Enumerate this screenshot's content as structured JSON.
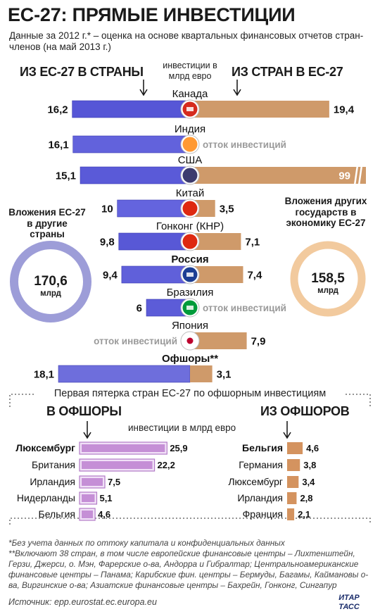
{
  "title": "ЕС-27: ПРЯМЫЕ ИНВЕСТИЦИИ",
  "subtitle": "Данные за 2012 г.* – оценка на основе квартальных финансовых отчетов стран-членов (на май 2013 г.)",
  "header_left": "ИЗ ЕС-27 В СТРАНЫ",
  "header_right": "ИЗ СТРАН В ЕС-27",
  "unit_top": "инвестиции в млрд евро",
  "outflow_label": "отток инвестиций",
  "left_ring": {
    "title": "Вложения ЕС-27 в другие страны",
    "value": "170,6",
    "unit": "млрд",
    "color": "#9d9dd8"
  },
  "right_ring": {
    "title": "Вложения других государств в экономику ЕС-27",
    "value": "158,5",
    "unit": "млрд",
    "color": "#f2ca9e"
  },
  "offshore_title": "Первая пятерка стран ЕС-27 по офшорным инвестициям",
  "header_offshore_left": "В ОФШОРЫ",
  "header_offshore_right": "ИЗ ОФШОРОВ",
  "unit_mid": "инвестиции в млрд евро",
  "colors": {
    "outward": "#5050d0",
    "inward": "#cf9a6a",
    "to_offshore": "#c58fd6",
    "from_offshore": "#d4935f"
  },
  "chart_data": [
    {
      "type": "bar",
      "categories": [
        "Канада",
        "Индия",
        "США",
        "Китай",
        "Гонконг (КНР)",
        "Россия",
        "Бразилия",
        "Япония",
        "Офшоры**"
      ],
      "bold_categories": [
        "Россия",
        "Офшоры**"
      ],
      "series": [
        {
          "name": "ИЗ ЕС-27 В СТРАНЫ",
          "values": [
            16.2,
            16.1,
            15.1,
            10,
            9.8,
            9.4,
            6,
            null,
            18.1
          ],
          "labels": [
            "16,2",
            "16,1",
            "15,1",
            "10",
            "9,8",
            "9,4",
            "6",
            "",
            "18,1"
          ]
        },
        {
          "name": "ИЗ СТРАН В ЕС-27",
          "values": [
            19.4,
            null,
            99,
            3.5,
            7.1,
            7.4,
            null,
            7.9,
            3.1
          ],
          "labels": [
            "19,4",
            "",
            "99",
            "3,5",
            "7,1",
            "7,4",
            "",
            "7,9",
            "3,1"
          ]
        }
      ],
      "outflow": [
        false,
        true,
        false,
        false,
        false,
        false,
        true,
        true,
        false
      ],
      "ylabel": "инвестиции в млрд евро"
    },
    {
      "type": "bar",
      "title": "В ОФШОРЫ",
      "categories": [
        "Люксембург",
        "Британия",
        "Ирландия",
        "Нидерланды",
        "Бельгия"
      ],
      "values": [
        25.9,
        22.2,
        7.5,
        5.1,
        4.6
      ],
      "labels": [
        "25,9",
        "22,2",
        "7,5",
        "5,1",
        "4,6"
      ]
    },
    {
      "type": "bar",
      "title": "ИЗ ОФШОРОВ",
      "categories": [
        "Бельгия",
        "Германия",
        "Люксембург",
        "Ирландия",
        "Франция"
      ],
      "values": [
        4.6,
        3.8,
        3.4,
        2.8,
        2.1
      ],
      "labels": [
        "4,6",
        "3,8",
        "3,4",
        "2,8",
        "2,1"
      ]
    }
  ],
  "footnotes": [
    "*Без учета данных по оттоку капитала и конфиденциальных данных",
    "**Включают 38 стран, в том числе европейские финансовые центры – Лихтенштейн, Герзи, Джерси, о. Мэн, Фарерские о-ва, Андорра и Гибралтар; Центральноамериканские финансовые центры – Панама; Карибские фин. центры – Бермуды, Багамы, Каймановы о-ва, Виргинские о-ва; Азиатские финансовые центры – Бахрейн, Гонконг, Сингапур"
  ],
  "source": "Источник: epp.eurostat.ec.europa.eu",
  "logo": "ИТАР ТАСС"
}
